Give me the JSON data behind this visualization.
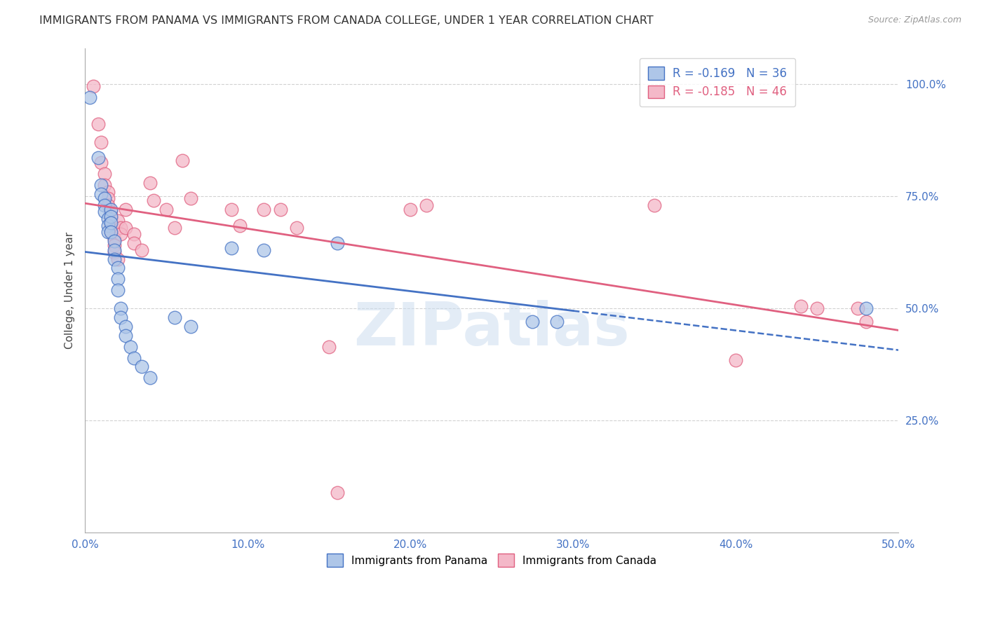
{
  "title": "IMMIGRANTS FROM PANAMA VS IMMIGRANTS FROM CANADA COLLEGE, UNDER 1 YEAR CORRELATION CHART",
  "source": "Source: ZipAtlas.com",
  "ylabel": "College, Under 1 year",
  "xlim": [
    0.0,
    0.5
  ],
  "ylim": [
    0.0,
    1.08
  ],
  "xtick_values": [
    0.0,
    0.1,
    0.2,
    0.3,
    0.4,
    0.5
  ],
  "xtick_labels": [
    "0.0%",
    "10.0%",
    "20.0%",
    "30.0%",
    "40.0%",
    "50.0%"
  ],
  "ytick_values": [
    0.25,
    0.5,
    0.75,
    1.0
  ],
  "ytick_labels": [
    "25.0%",
    "50.0%",
    "75.0%",
    "100.0%"
  ],
  "legend_r_panama": "-0.169",
  "legend_n_panama": "36",
  "legend_r_canada": "-0.185",
  "legend_n_canada": "46",
  "panama_color": "#aec6e8",
  "canada_color": "#f4b8c8",
  "panama_line_color": "#4472c4",
  "canada_line_color": "#e06080",
  "panama_points": [
    [
      0.003,
      0.97
    ],
    [
      0.008,
      0.835
    ],
    [
      0.01,
      0.775
    ],
    [
      0.01,
      0.755
    ],
    [
      0.012,
      0.745
    ],
    [
      0.012,
      0.73
    ],
    [
      0.012,
      0.715
    ],
    [
      0.014,
      0.7
    ],
    [
      0.014,
      0.685
    ],
    [
      0.014,
      0.67
    ],
    [
      0.016,
      0.72
    ],
    [
      0.016,
      0.705
    ],
    [
      0.016,
      0.69
    ],
    [
      0.016,
      0.67
    ],
    [
      0.018,
      0.65
    ],
    [
      0.018,
      0.63
    ],
    [
      0.018,
      0.61
    ],
    [
      0.02,
      0.59
    ],
    [
      0.02,
      0.565
    ],
    [
      0.02,
      0.54
    ],
    [
      0.022,
      0.5
    ],
    [
      0.022,
      0.48
    ],
    [
      0.025,
      0.46
    ],
    [
      0.025,
      0.44
    ],
    [
      0.028,
      0.415
    ],
    [
      0.03,
      0.39
    ],
    [
      0.035,
      0.37
    ],
    [
      0.04,
      0.345
    ],
    [
      0.055,
      0.48
    ],
    [
      0.065,
      0.46
    ],
    [
      0.09,
      0.635
    ],
    [
      0.11,
      0.63
    ],
    [
      0.155,
      0.645
    ],
    [
      0.275,
      0.47
    ],
    [
      0.29,
      0.47
    ],
    [
      0.48,
      0.5
    ]
  ],
  "canada_points": [
    [
      0.005,
      0.995
    ],
    [
      0.008,
      0.91
    ],
    [
      0.01,
      0.87
    ],
    [
      0.01,
      0.825
    ],
    [
      0.012,
      0.8
    ],
    [
      0.012,
      0.775
    ],
    [
      0.014,
      0.76
    ],
    [
      0.014,
      0.745
    ],
    [
      0.014,
      0.73
    ],
    [
      0.016,
      0.715
    ],
    [
      0.016,
      0.7
    ],
    [
      0.016,
      0.685
    ],
    [
      0.016,
      0.67
    ],
    [
      0.018,
      0.655
    ],
    [
      0.018,
      0.64
    ],
    [
      0.018,
      0.625
    ],
    [
      0.02,
      0.61
    ],
    [
      0.02,
      0.695
    ],
    [
      0.022,
      0.68
    ],
    [
      0.022,
      0.665
    ],
    [
      0.025,
      0.72
    ],
    [
      0.025,
      0.68
    ],
    [
      0.03,
      0.665
    ],
    [
      0.03,
      0.645
    ],
    [
      0.035,
      0.63
    ],
    [
      0.04,
      0.78
    ],
    [
      0.042,
      0.74
    ],
    [
      0.05,
      0.72
    ],
    [
      0.055,
      0.68
    ],
    [
      0.06,
      0.83
    ],
    [
      0.065,
      0.745
    ],
    [
      0.09,
      0.72
    ],
    [
      0.095,
      0.685
    ],
    [
      0.11,
      0.72
    ],
    [
      0.12,
      0.72
    ],
    [
      0.13,
      0.68
    ],
    [
      0.15,
      0.415
    ],
    [
      0.2,
      0.72
    ],
    [
      0.155,
      0.09
    ],
    [
      0.21,
      0.73
    ],
    [
      0.35,
      0.73
    ],
    [
      0.4,
      0.385
    ],
    [
      0.44,
      0.505
    ],
    [
      0.45,
      0.5
    ],
    [
      0.475,
      0.5
    ],
    [
      0.48,
      0.47
    ]
  ],
  "background_color": "#ffffff",
  "watermark": "ZIPatlas",
  "watermark_color": "#ccddf0"
}
